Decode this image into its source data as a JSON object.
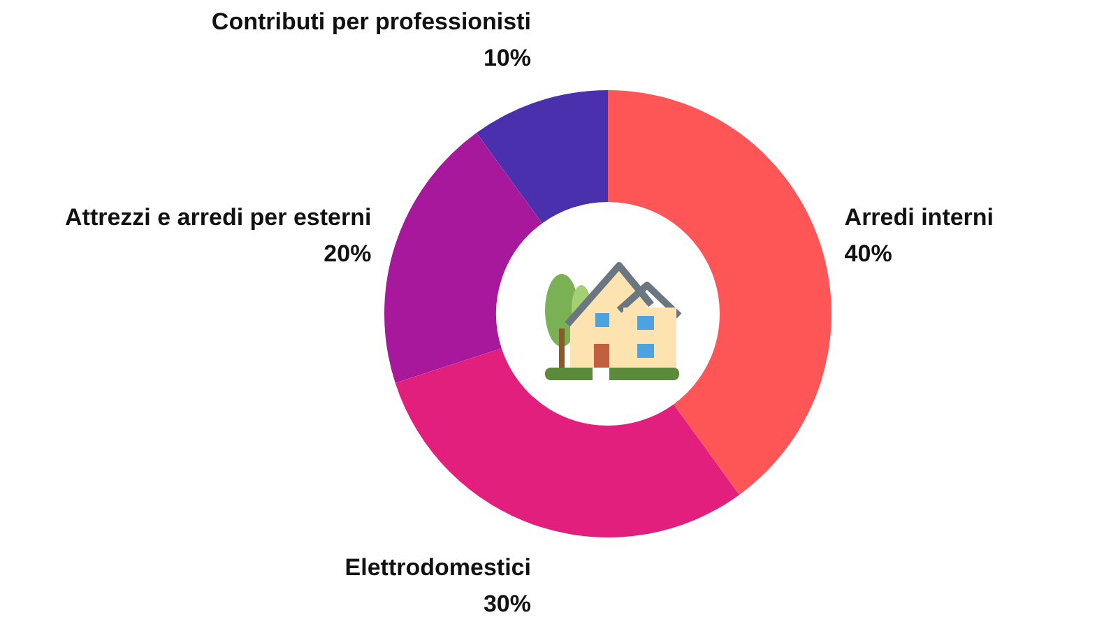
{
  "chart_data": {
    "type": "donut",
    "categories": [
      "Arredi interni",
      "Elettrodomestici",
      "Attrezzi e arredi per esterni",
      "Contributi per professionisti"
    ],
    "values": [
      40,
      30,
      20,
      10
    ],
    "colors": [
      "#fe5656",
      "#e31f7e",
      "#a7189c",
      "#4a30ad"
    ],
    "value_labels": [
      "40%",
      "30%",
      "20%",
      "10%"
    ],
    "legend": false
  }
}
